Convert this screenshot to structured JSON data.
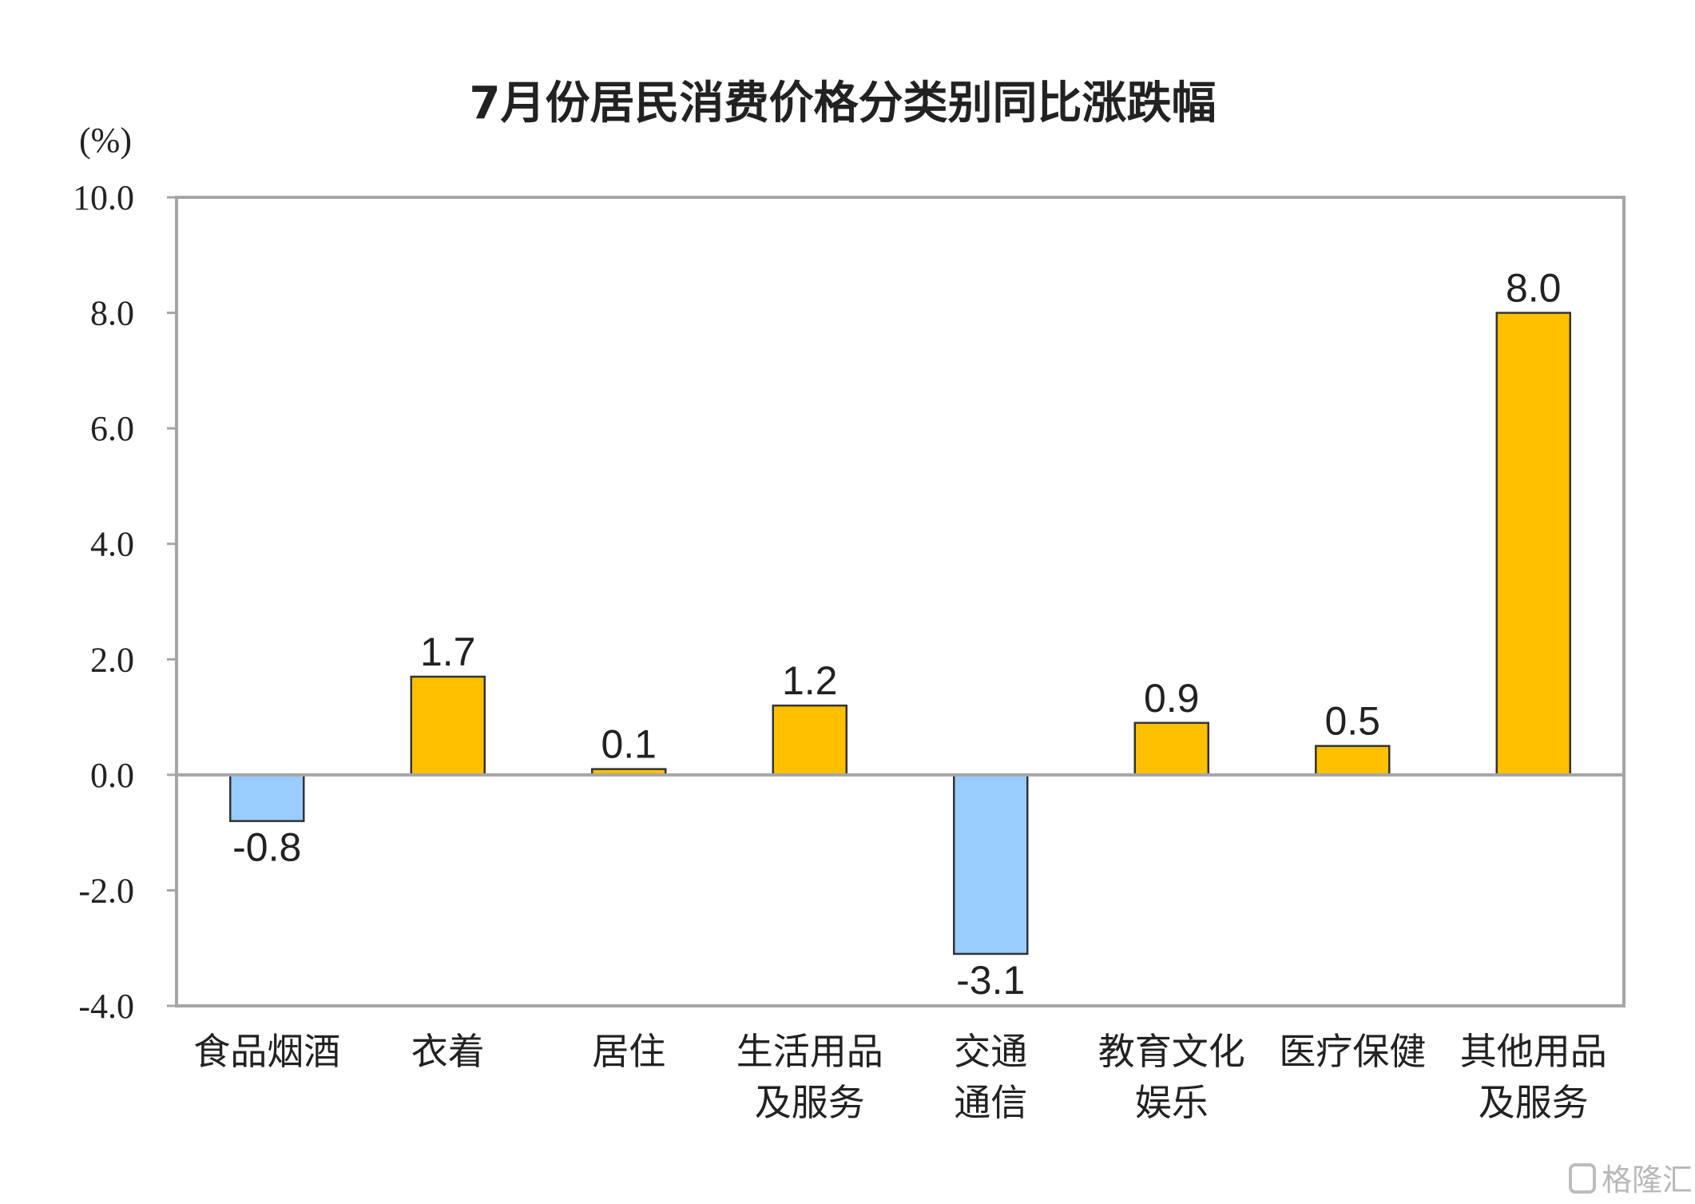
{
  "chart_data": {
    "type": "bar",
    "title": "7月份居民消费价格分类别同比涨跌幅",
    "ylabel": "(%)",
    "ylim": [
      -4.0,
      10.0
    ],
    "yticks": [
      "10.0",
      "8.0",
      "6.0",
      "4.0",
      "2.0",
      "0.0",
      "-2.0",
      "-4.0"
    ],
    "ytick_values": [
      10,
      8,
      6,
      4,
      2,
      0,
      -2,
      -4
    ],
    "grid": false,
    "categories": [
      [
        "食品烟酒"
      ],
      [
        "衣着"
      ],
      [
        "居住"
      ],
      [
        "生活用品",
        "及服务"
      ],
      [
        "交通",
        "通信"
      ],
      [
        "教育文化",
        "娱乐"
      ],
      [
        "医疗保健"
      ],
      [
        "其他用品",
        "及服务"
      ]
    ],
    "values": [
      -0.8,
      1.7,
      0.1,
      1.2,
      -3.1,
      0.9,
      0.5,
      8.0
    ],
    "value_labels": [
      "-0.8",
      "1.7",
      "0.1",
      "1.2",
      "-3.1",
      "0.9",
      "0.5",
      "8.0"
    ],
    "colors": {
      "positive": "#FFC000",
      "negative": "#99CCFF",
      "outline": "#333333",
      "frame": "#a6a6a6"
    }
  },
  "watermark": "格隆汇"
}
